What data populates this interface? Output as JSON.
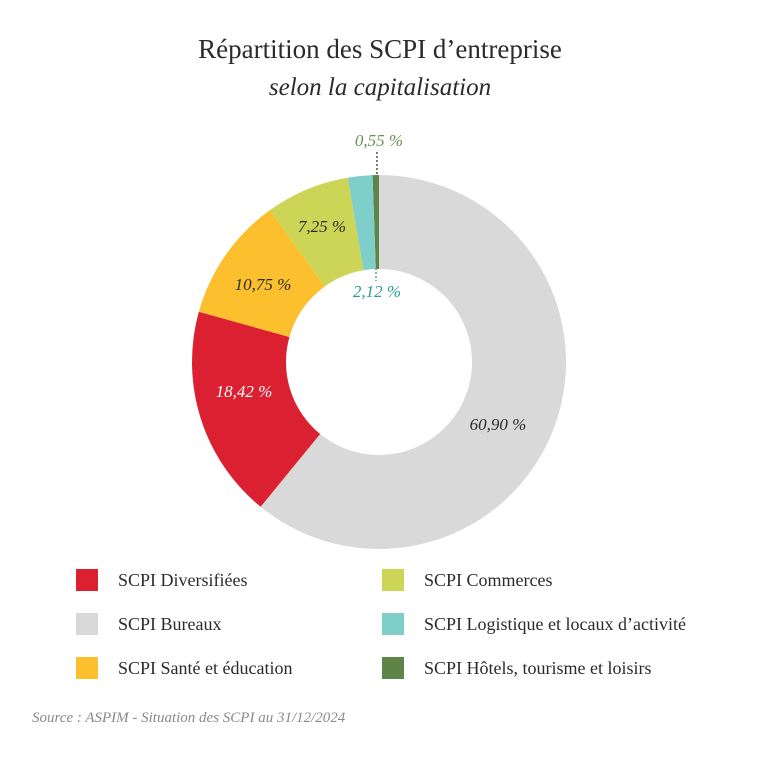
{
  "chart_data": {
    "type": "pie",
    "variant": "donut",
    "title": "Répartition des SCPI d’entreprise",
    "subtitle": "selon la capitalisation",
    "slices": [
      {
        "name": "SCPI Hôtels, tourisme et loisirs",
        "value": 0.55,
        "label": "0,55 %",
        "color": "#5e8547",
        "label_color": "#6a9150"
      },
      {
        "name": "SCPI Bureaux",
        "value": 60.9,
        "label": "60,90 %",
        "color": "#d9d9d9",
        "label_color": "#2b2b2b"
      },
      {
        "name": "SCPI Diversifiées",
        "value": 18.42,
        "label": "18,42 %",
        "color": "#db2032",
        "label_color": "#ffffff"
      },
      {
        "name": "SCPI Santé et éducation",
        "value": 10.75,
        "label": "10,75 %",
        "color": "#fcbf2d",
        "label_color": "#2b2b2b"
      },
      {
        "name": "SCPI Commerces",
        "value": 7.25,
        "label": "7,25 %",
        "color": "#cdd557",
        "label_color": "#2b2b2b"
      },
      {
        "name": "SCPI Logistique et locaux d’activité",
        "value": 2.12,
        "label": "2,12 %",
        "color": "#7ecfc9",
        "label_color": "#2a9d95"
      }
    ]
  },
  "legend": {
    "left": [
      {
        "label": "SCPI Diversifiées",
        "color": "#db2032"
      },
      {
        "label": "SCPI Bureaux",
        "color": "#d9d9d9"
      },
      {
        "label": "SCPI Santé et éducation",
        "color": "#fcbf2d"
      }
    ],
    "right": [
      {
        "label": "SCPI Commerces",
        "color": "#cdd557"
      },
      {
        "label": "SCPI Logistique et locaux d’activité",
        "color": "#7ecfc9"
      },
      {
        "label": "SCPI Hôtels, tourisme et loisirs",
        "color": "#5e8547"
      }
    ]
  },
  "source": "Source : ASPIM - Situation des SCPI au 31/12/2024"
}
